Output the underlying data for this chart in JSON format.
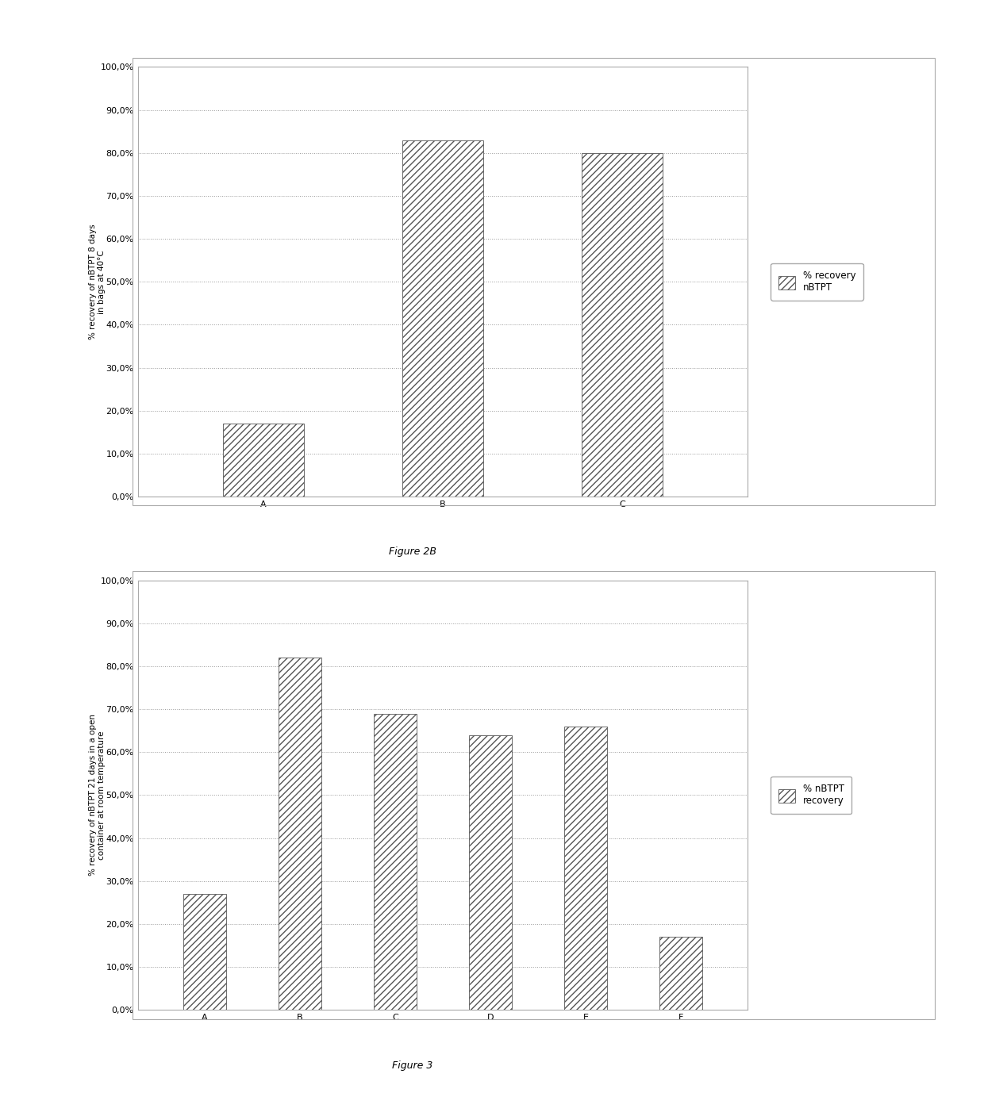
{
  "fig2b": {
    "categories": [
      "A",
      "B",
      "C"
    ],
    "values": [
      17.0,
      83.0,
      80.0
    ],
    "ylabel": "% recovery of nBTPT 8 days\nin bags at 40°C",
    "legend_label": "% recovery\nnBTPT",
    "caption": "Figure 2B",
    "ylim": [
      0,
      100
    ],
    "yticks": [
      0,
      10,
      20,
      30,
      40,
      50,
      60,
      70,
      80,
      90,
      100
    ],
    "ytick_labels": [
      "0,0%",
      "10,0%",
      "20,0%",
      "30,0%",
      "40,0%",
      "50,0%",
      "60,0%",
      "70,0%",
      "80,0%",
      "90,0%",
      "100,0%"
    ]
  },
  "fig3": {
    "categories": [
      "A",
      "B",
      "C",
      "D",
      "E",
      "F"
    ],
    "values": [
      27.0,
      82.0,
      69.0,
      64.0,
      66.0,
      17.0
    ],
    "ylabel": "% recovery of nBTPT 21 days in a open\ncontainer at room temperature",
    "legend_label": "% nBTPT\nrecovery",
    "caption": "Figure 3",
    "ylim": [
      0,
      100
    ],
    "yticks": [
      0,
      10,
      20,
      30,
      40,
      50,
      60,
      70,
      80,
      90,
      100
    ],
    "ytick_labels": [
      "0,0%",
      "10,0%",
      "20,0%",
      "30,0%",
      "40,0%",
      "50,0%",
      "60,0%",
      "70,0%",
      "80,0%",
      "90,0%",
      "100,0%"
    ]
  },
  "bar_facecolor": "white",
  "bar_hatch": "////",
  "bar_edgecolor": "#555555",
  "background_color": "#ffffff",
  "plot_bg_color": "#ffffff",
  "grid_color": "#999999",
  "border_color": "#aaaaaa",
  "font_size_tick": 8,
  "font_size_ylabel": 7.5,
  "font_size_legend": 8.5,
  "font_size_caption": 9
}
